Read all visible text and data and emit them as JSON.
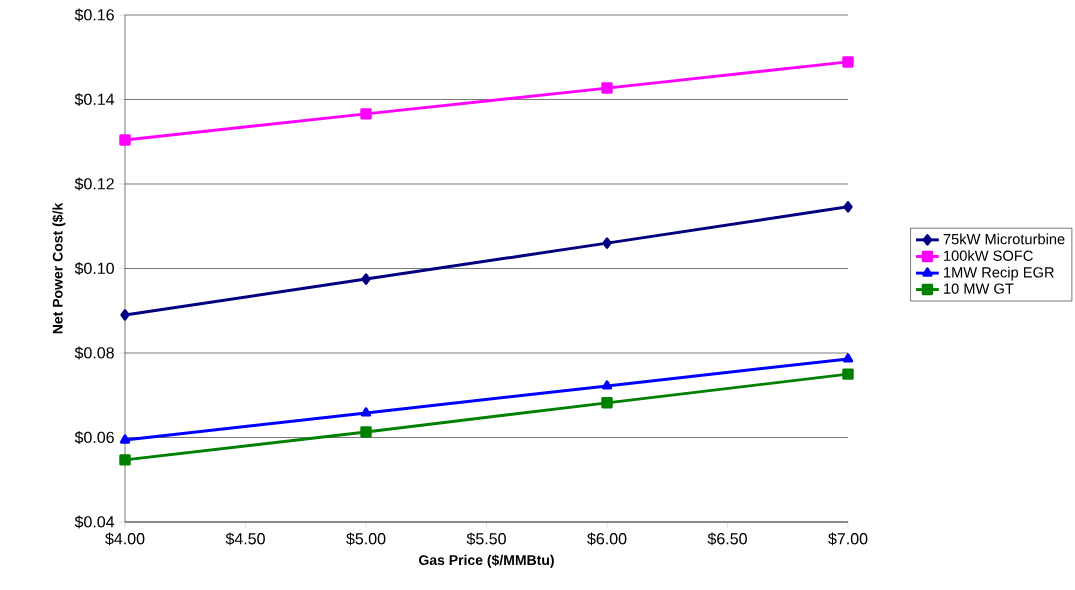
{
  "chart_data": {
    "type": "line",
    "xlabel": "Gas Price ($/MMBtu)",
    "ylabel": "Net Power Cost ($/k",
    "x": [
      4,
      5,
      6,
      7
    ],
    "series": [
      {
        "name": "75kW Microturbine",
        "color": "#000080",
        "marker": "diamond",
        "values": [
          0.089,
          0.0975,
          0.106,
          0.1146
        ]
      },
      {
        "name": "100kW SOFC",
        "color": "#ff00ff",
        "marker": "square",
        "values": [
          0.1304,
          0.1366,
          0.1427,
          0.1489
        ]
      },
      {
        "name": "1MW Recip EGR",
        "color": "#0000ff",
        "marker": "triangle",
        "values": [
          0.0594,
          0.0658,
          0.0722,
          0.0786
        ]
      },
      {
        "name": "10 MW GT",
        "color": "#008000",
        "marker": "square",
        "values": [
          0.0547,
          0.0613,
          0.0682,
          0.075
        ]
      }
    ],
    "xlim": [
      4,
      7
    ],
    "xticks": [
      {
        "value": 4,
        "label": "$4.00"
      },
      {
        "value": 4.5,
        "label": "$4.50"
      },
      {
        "value": 5,
        "label": "$5.00"
      },
      {
        "value": 5.5,
        "label": "$5.50"
      },
      {
        "value": 6,
        "label": "$6.00"
      },
      {
        "value": 6.5,
        "label": "$6.50"
      },
      {
        "value": 7,
        "label": "$7.00"
      }
    ],
    "ylim": [
      0.04,
      0.16
    ],
    "yticks": [
      {
        "value": 0.04,
        "label": "$0.04"
      },
      {
        "value": 0.06,
        "label": "$0.06"
      },
      {
        "value": 0.08,
        "label": "$0.08"
      },
      {
        "value": 0.1,
        "label": "$0.10"
      },
      {
        "value": 0.12,
        "label": "$0.12"
      },
      {
        "value": 0.14,
        "label": "$0.14"
      },
      {
        "value": 0.16,
        "label": "$0.16"
      }
    ],
    "grid": "y",
    "legend": "right",
    "line_style": "solid"
  }
}
